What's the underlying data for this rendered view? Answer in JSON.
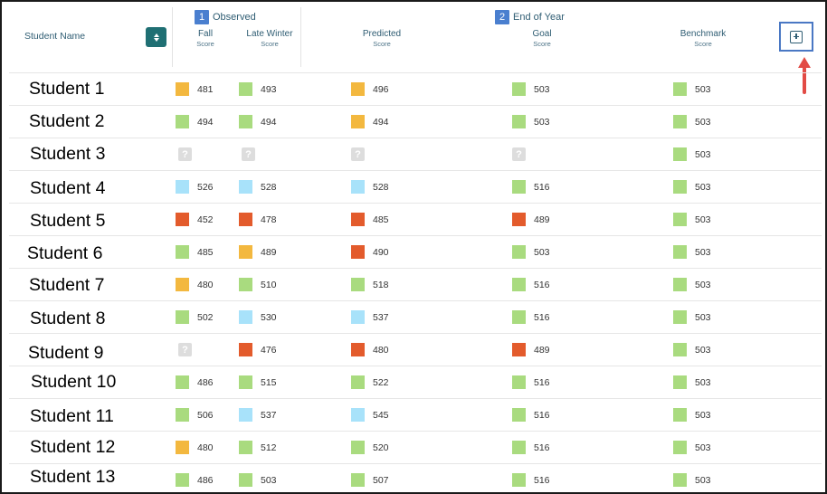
{
  "header": {
    "student_name": "Student Name",
    "groups": [
      {
        "number": "1",
        "label": "Observed"
      },
      {
        "number": "2",
        "label": "End of Year"
      }
    ],
    "columns": [
      {
        "main": "Fall",
        "sub": "Score"
      },
      {
        "main": "Late Winter",
        "sub": "Score"
      },
      {
        "main": "Predicted",
        "sub": "Score"
      },
      {
        "main": "Goal",
        "sub": "Score"
      },
      {
        "main": "Benchmark",
        "sub": "Score"
      }
    ],
    "unknown_symbol": "?"
  },
  "level_colors": {
    "green": "#a9db7f",
    "yellow": "#f3b83f",
    "blue": "#a8e2fa",
    "red": "#e35b2c",
    "unknown": "#dddddd"
  },
  "students": [
    {
      "name": "Student 1",
      "scores": [
        {
          "v": "481",
          "lvl": "yellow"
        },
        {
          "v": "493",
          "lvl": "green"
        },
        {
          "v": "496",
          "lvl": "yellow"
        },
        {
          "v": "503",
          "lvl": "green"
        },
        {
          "v": "503",
          "lvl": "green"
        }
      ]
    },
    {
      "name": "Student 2",
      "scores": [
        {
          "v": "494",
          "lvl": "green"
        },
        {
          "v": "494",
          "lvl": "green"
        },
        {
          "v": "494",
          "lvl": "yellow"
        },
        {
          "v": "503",
          "lvl": "green"
        },
        {
          "v": "503",
          "lvl": "green"
        }
      ]
    },
    {
      "name": "Student 3",
      "scores": [
        {
          "v": "",
          "lvl": "unknown"
        },
        {
          "v": "",
          "lvl": "unknown"
        },
        {
          "v": "",
          "lvl": "unknown"
        },
        {
          "v": "",
          "lvl": "unknown"
        },
        {
          "v": "503",
          "lvl": "green"
        }
      ]
    },
    {
      "name": "Student 4",
      "scores": [
        {
          "v": "526",
          "lvl": "blue"
        },
        {
          "v": "528",
          "lvl": "blue"
        },
        {
          "v": "528",
          "lvl": "blue"
        },
        {
          "v": "516",
          "lvl": "green"
        },
        {
          "v": "503",
          "lvl": "green"
        }
      ]
    },
    {
      "name": "Student 5",
      "scores": [
        {
          "v": "452",
          "lvl": "red"
        },
        {
          "v": "478",
          "lvl": "red"
        },
        {
          "v": "485",
          "lvl": "red"
        },
        {
          "v": "489",
          "lvl": "red"
        },
        {
          "v": "503",
          "lvl": "green"
        }
      ]
    },
    {
      "name": "Student 6",
      "scores": [
        {
          "v": "485",
          "lvl": "green"
        },
        {
          "v": "489",
          "lvl": "yellow"
        },
        {
          "v": "490",
          "lvl": "red"
        },
        {
          "v": "503",
          "lvl": "green"
        },
        {
          "v": "503",
          "lvl": "green"
        }
      ]
    },
    {
      "name": "Student 7",
      "scores": [
        {
          "v": "480",
          "lvl": "yellow"
        },
        {
          "v": "510",
          "lvl": "green"
        },
        {
          "v": "518",
          "lvl": "green"
        },
        {
          "v": "516",
          "lvl": "green"
        },
        {
          "v": "503",
          "lvl": "green"
        }
      ]
    },
    {
      "name": "Student 8",
      "scores": [
        {
          "v": "502",
          "lvl": "green"
        },
        {
          "v": "530",
          "lvl": "blue"
        },
        {
          "v": "537",
          "lvl": "blue"
        },
        {
          "v": "516",
          "lvl": "green"
        },
        {
          "v": "503",
          "lvl": "green"
        }
      ]
    },
    {
      "name": "Student 9",
      "scores": [
        {
          "v": "",
          "lvl": "unknown"
        },
        {
          "v": "476",
          "lvl": "red"
        },
        {
          "v": "480",
          "lvl": "red"
        },
        {
          "v": "489",
          "lvl": "red"
        },
        {
          "v": "503",
          "lvl": "green"
        }
      ]
    },
    {
      "name": "Student 10",
      "scores": [
        {
          "v": "486",
          "lvl": "green"
        },
        {
          "v": "515",
          "lvl": "green"
        },
        {
          "v": "522",
          "lvl": "green"
        },
        {
          "v": "516",
          "lvl": "green"
        },
        {
          "v": "503",
          "lvl": "green"
        }
      ]
    },
    {
      "name": "Student 11",
      "scores": [
        {
          "v": "506",
          "lvl": "green"
        },
        {
          "v": "537",
          "lvl": "blue"
        },
        {
          "v": "545",
          "lvl": "blue"
        },
        {
          "v": "516",
          "lvl": "green"
        },
        {
          "v": "503",
          "lvl": "green"
        }
      ]
    },
    {
      "name": "Student 12",
      "scores": [
        {
          "v": "480",
          "lvl": "yellow"
        },
        {
          "v": "512",
          "lvl": "green"
        },
        {
          "v": "520",
          "lvl": "green"
        },
        {
          "v": "516",
          "lvl": "green"
        },
        {
          "v": "503",
          "lvl": "green"
        }
      ]
    },
    {
      "name": "Student 13",
      "scores": [
        {
          "v": "486",
          "lvl": "green"
        },
        {
          "v": "503",
          "lvl": "green"
        },
        {
          "v": "507",
          "lvl": "green"
        },
        {
          "v": "516",
          "lvl": "green"
        },
        {
          "v": "503",
          "lvl": "green"
        }
      ]
    }
  ]
}
